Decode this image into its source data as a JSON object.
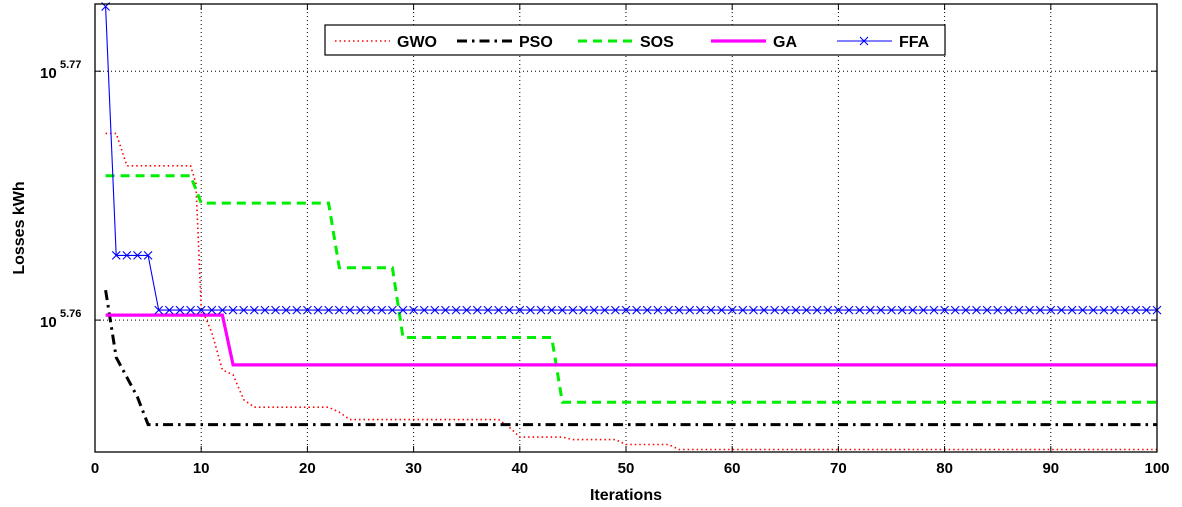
{
  "chart_data": {
    "type": "line",
    "xlabel": "Iterations",
    "ylabel": "Losses kWh",
    "xlim": [
      0,
      100
    ],
    "xticks": [
      "0",
      "10",
      "20",
      "30",
      "40",
      "50",
      "60",
      "70",
      "80",
      "90",
      "100"
    ],
    "ylim": [
      5.7547,
      5.7727
    ],
    "yscale": "log10",
    "yticks": [
      {
        "base": "10",
        "exp": "5.76",
        "value": 5.76
      },
      {
        "base": "10",
        "exp": "5.77",
        "value": 5.77
      }
    ],
    "grid": true,
    "legend_position": "top-center",
    "series": [
      {
        "name": "GWO",
        "color": "#ff0000",
        "style": "dotted",
        "x": [
          1,
          2,
          3,
          4,
          5,
          9,
          9.5,
          10,
          11,
          12,
          13,
          14,
          15,
          22,
          23,
          24,
          25,
          38,
          39,
          40,
          41,
          44,
          45,
          49,
          50,
          54,
          55,
          100
        ],
        "y": [
          5.7675,
          5.7675,
          5.7662,
          5.7662,
          5.7662,
          5.7662,
          5.7655,
          5.7605,
          5.7595,
          5.758,
          5.7578,
          5.7568,
          5.7565,
          5.7565,
          5.7563,
          5.756,
          5.756,
          5.756,
          5.7557,
          5.7553,
          5.7553,
          5.7553,
          5.7552,
          5.7552,
          5.755,
          5.755,
          5.7548,
          5.7548
        ]
      },
      {
        "name": "PSO",
        "color": "#000000",
        "style": "dashdot",
        "x": [
          1,
          2,
          3,
          4,
          5,
          100
        ],
        "y": [
          5.7612,
          5.7585,
          5.7577,
          5.7569,
          5.7558,
          5.7558
        ]
      },
      {
        "name": "SOS",
        "color": "#00ee00",
        "style": "dashed",
        "x": [
          1,
          9,
          10,
          22,
          23,
          28,
          29,
          43,
          44,
          100
        ],
        "y": [
          5.7658,
          5.7658,
          5.7647,
          5.7647,
          5.7621,
          5.7621,
          5.7593,
          5.7593,
          5.7567,
          5.7567
        ]
      },
      {
        "name": "GA",
        "color": "#ff00ff",
        "style": "solid",
        "x": [
          1,
          12,
          13,
          100
        ],
        "y": [
          5.7602,
          5.7602,
          5.7582,
          5.7582
        ]
      },
      {
        "name": "FFA",
        "color": "#0000ff",
        "style": "solid-x",
        "x": [
          1,
          2,
          3,
          4,
          5,
          6,
          7,
          8,
          9,
          10,
          11,
          12,
          13,
          14,
          15,
          16,
          17,
          18,
          19,
          20,
          21,
          22,
          23,
          24,
          25,
          26,
          27,
          28,
          29,
          30,
          31,
          32,
          33,
          34,
          35,
          36,
          37,
          38,
          39,
          40,
          41,
          42,
          43,
          44,
          45,
          46,
          47,
          48,
          49,
          50,
          51,
          52,
          53,
          54,
          55,
          56,
          57,
          58,
          59,
          60,
          61,
          62,
          63,
          64,
          65,
          66,
          67,
          68,
          69,
          70,
          71,
          72,
          73,
          74,
          75,
          76,
          77,
          78,
          79,
          80,
          81,
          82,
          83,
          84,
          85,
          86,
          87,
          88,
          89,
          90,
          91,
          92,
          93,
          94,
          95,
          96,
          97,
          98,
          99,
          100
        ],
        "y": [
          5.7726,
          5.7626,
          5.7626,
          5.7626,
          5.7626,
          5.7604,
          5.7604,
          5.7604,
          5.7604,
          5.7604,
          5.7604,
          5.7604,
          5.7604,
          5.7604,
          5.7604,
          5.7604,
          5.7604,
          5.7604,
          5.7604,
          5.7604,
          5.7604,
          5.7604,
          5.7604,
          5.7604,
          5.7604,
          5.7604,
          5.7604,
          5.7604,
          5.7604,
          5.7604,
          5.7604,
          5.7604,
          5.7604,
          5.7604,
          5.7604,
          5.7604,
          5.7604,
          5.7604,
          5.7604,
          5.7604,
          5.7604,
          5.7604,
          5.7604,
          5.7604,
          5.7604,
          5.7604,
          5.7604,
          5.7604,
          5.7604,
          5.7604,
          5.7604,
          5.7604,
          5.7604,
          5.7604,
          5.7604,
          5.7604,
          5.7604,
          5.7604,
          5.7604,
          5.7604,
          5.7604,
          5.7604,
          5.7604,
          5.7604,
          5.7604,
          5.7604,
          5.7604,
          5.7604,
          5.7604,
          5.7604,
          5.7604,
          5.7604,
          5.7604,
          5.7604,
          5.7604,
          5.7604,
          5.7604,
          5.7604,
          5.7604,
          5.7604,
          5.7604,
          5.7604,
          5.7604,
          5.7604,
          5.7604,
          5.7604,
          5.7604,
          5.7604,
          5.7604,
          5.7604,
          5.7604,
          5.7604,
          5.7604,
          5.7604,
          5.7604,
          5.7604,
          5.7604,
          5.7604,
          5.7604,
          5.7604
        ]
      }
    ]
  }
}
